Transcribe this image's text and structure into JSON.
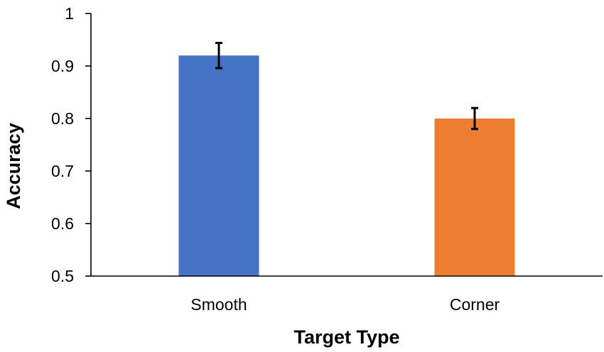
{
  "chart_data": {
    "type": "bar",
    "title": "",
    "xlabel": "Target Type",
    "ylabel": "Accuracy",
    "categories": [
      "Smooth",
      "Corner"
    ],
    "values": [
      0.92,
      0.8
    ],
    "error": [
      0.024,
      0.02
    ],
    "colors": [
      "#4472C4",
      "#ED7D31"
    ],
    "ylim": [
      0.5,
      1.0
    ],
    "yticks": [
      {
        "value": 0.5,
        "label": "0.5"
      },
      {
        "value": 0.6,
        "label": "0.6"
      },
      {
        "value": 0.7,
        "label": "0.7"
      },
      {
        "value": 0.8,
        "label": "0.8"
      },
      {
        "value": 0.9,
        "label": "0.9"
      },
      {
        "value": 1.0,
        "label": "1"
      }
    ],
    "grid": false,
    "legend": "none"
  }
}
